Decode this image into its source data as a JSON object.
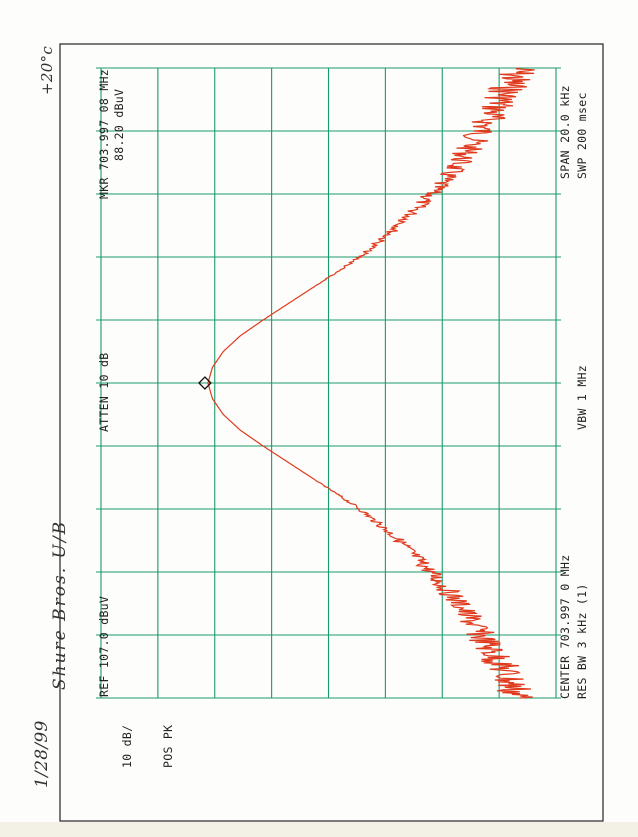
{
  "chart_data": {
    "type": "line",
    "title": "",
    "x_axis": {
      "range_khz": [
        -10,
        10
      ],
      "divisions": 10
    },
    "y_axis": {
      "ref_dbuv": 107.0,
      "scale_db_per_div": 10,
      "range_dbuv": [
        27.0,
        107.0
      ],
      "divisions": 8
    },
    "grid": true,
    "series": [
      {
        "color": "#e03a1e",
        "x_khz": [
          -10,
          -9,
          -8,
          -7,
          -6,
          -5,
          -4,
          -3,
          -2,
          -1.5,
          -1,
          -0.5,
          0,
          0.5,
          1,
          1.5,
          2,
          3,
          4,
          5,
          6,
          7,
          8,
          9,
          10
        ],
        "y_dbuv": [
          33.5,
          36.5,
          40.2,
          44.0,
          49.0,
          54.5,
          61.5,
          70.0,
          78.5,
          82.5,
          85.5,
          87.4,
          88.2,
          87.4,
          85.5,
          82.5,
          78.5,
          70.0,
          61.5,
          54.5,
          49.0,
          44.0,
          40.2,
          36.5,
          33.5
        ]
      }
    ],
    "marker": {
      "x_khz": 0,
      "y_dbuv": 88.2,
      "shape": "diamond"
    }
  },
  "annotations": {
    "ref": "REF  107.0 dBuV",
    "atten": "ATTEN 10 dB",
    "mkr_freq": "MKR 703.997 08 MHz",
    "mkr_level": "88.20 dBuV",
    "scale": "10 dB/",
    "detector": "POS PK",
    "center": "CENTER 703.997 0 MHz",
    "res_bw": "RES BW 3 kHz (1)",
    "vbw": "VBW 1 MHz",
    "span": "SPAN 20.0 kHz",
    "sweep": "SWP 200 msec"
  },
  "handwriting": {
    "date": "1/28/99",
    "device": "Shure Bros.  U/B",
    "temperature": "+20°c"
  },
  "colors": {
    "grid": "#1a9a6a",
    "trace": "#e03a1e",
    "frame": "#333333"
  }
}
